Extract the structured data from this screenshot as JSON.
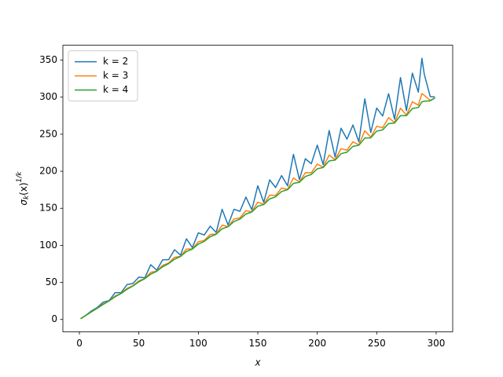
{
  "chart_data": {
    "type": "line",
    "xlabel": "x",
    "ylabel": [
      "σ",
      "k",
      "(x)",
      "1/k"
    ],
    "x": [
      1,
      5,
      10,
      15,
      20,
      25,
      30,
      35,
      40,
      45,
      50,
      55,
      60,
      65,
      70,
      75,
      80,
      85,
      90,
      95,
      100,
      105,
      110,
      115,
      120,
      125,
      130,
      135,
      140,
      145,
      150,
      155,
      160,
      165,
      170,
      175,
      180,
      185,
      190,
      195,
      200,
      205,
      210,
      215,
      220,
      225,
      230,
      235,
      240,
      245,
      250,
      255,
      260,
      265,
      270,
      275,
      280,
      285,
      288,
      290,
      295,
      299
    ],
    "series": [
      {
        "name": "k = 2",
        "color": "#1f77b4",
        "values": [
          1,
          5.1,
          11.4,
          16.1,
          23.4,
          25.5,
          36.1,
          36.1,
          47.0,
          48.6,
          57.1,
          56.3,
          73.9,
          66.5,
          80.6,
          80.7,
          94.2,
          86.8,
          108.8,
          97.0,
          116.9,
          114.0,
          125.9,
          117.4,
          148.7,
          127.6,
          148.7,
          146.0,
          165.2,
          148.0,
          180.4,
          158.1,
          188.4,
          178.1,
          194.2,
          180.4,
          222.9,
          188.7,
          216.9,
          210.2,
          235.2,
          209.1,
          255.0,
          219.3,
          258.1,
          243.4,
          262.5,
          239.7,
          297.8,
          252.4,
          285.3,
          274.6,
          304.7,
          270.3,
          326.5,
          281.8,
          332.4,
          306.8,
          352.5,
          330.9,
          300.8,
          300.2
        ]
      },
      {
        "name": "k = 3",
        "color": "#ff7f0e",
        "values": [
          1,
          5.0,
          10.4,
          15.2,
          21.0,
          25.1,
          31.7,
          35.1,
          41.9,
          45.7,
          52.1,
          55.2,
          63.6,
          65.2,
          73.1,
          76.1,
          83.9,
          85.2,
          95.0,
          95.2,
          104.8,
          106.7,
          114.7,
          115.3,
          127.3,
          125.3,
          135.6,
          137.1,
          146.8,
          145.4,
          158.3,
          155.4,
          167.7,
          167.5,
          177.3,
          175.6,
          191.0,
          185.5,
          198.1,
          197.9,
          209.7,
          205.5,
          221.9,
          215.6,
          230.5,
          228.4,
          239.8,
          235.6,
          254.7,
          245.9,
          260.7,
          258.8,
          272.4,
          265.7,
          285.1,
          275.8,
          293.8,
          289.2,
          304.9,
          302.4,
          295.7,
          299.1
        ]
      },
      {
        "name": "k = 4",
        "color": "#2ca02c",
        "values": [
          1,
          5.0,
          10.2,
          15.1,
          20.3,
          25.0,
          30.6,
          35.0,
          40.7,
          45.2,
          50.8,
          55.0,
          61.2,
          65.0,
          71.1,
          75.3,
          81.3,
          85.0,
          91.7,
          95.0,
          101.7,
          105.4,
          111.7,
          115.0,
          122.4,
          125.1,
          132.1,
          135.5,
          142.3,
          145.1,
          152.8,
          155.1,
          162.7,
          165.6,
          172.7,
          175.1,
          183.6,
          185.1,
          193.0,
          195.7,
          203.3,
          205.1,
          214.0,
          215.1,
          223.7,
          225.8,
          233.6,
          235.1,
          244.8,
          245.1,
          254.2,
          255.9,
          264.3,
          265.1,
          275.1,
          275.1,
          284.7,
          286.0,
          293.6,
          294.6,
          295.1,
          299.0
        ]
      }
    ],
    "xlim": [
      -13.9,
      313.9
    ],
    "xticks": [
      0,
      50,
      100,
      150,
      200,
      250,
      300
    ],
    "ylim": [
      -16.6,
      370.1
    ],
    "yticks": [
      0,
      50,
      100,
      150,
      200,
      250,
      300,
      350
    ],
    "grid": false,
    "legend": "upper left"
  }
}
